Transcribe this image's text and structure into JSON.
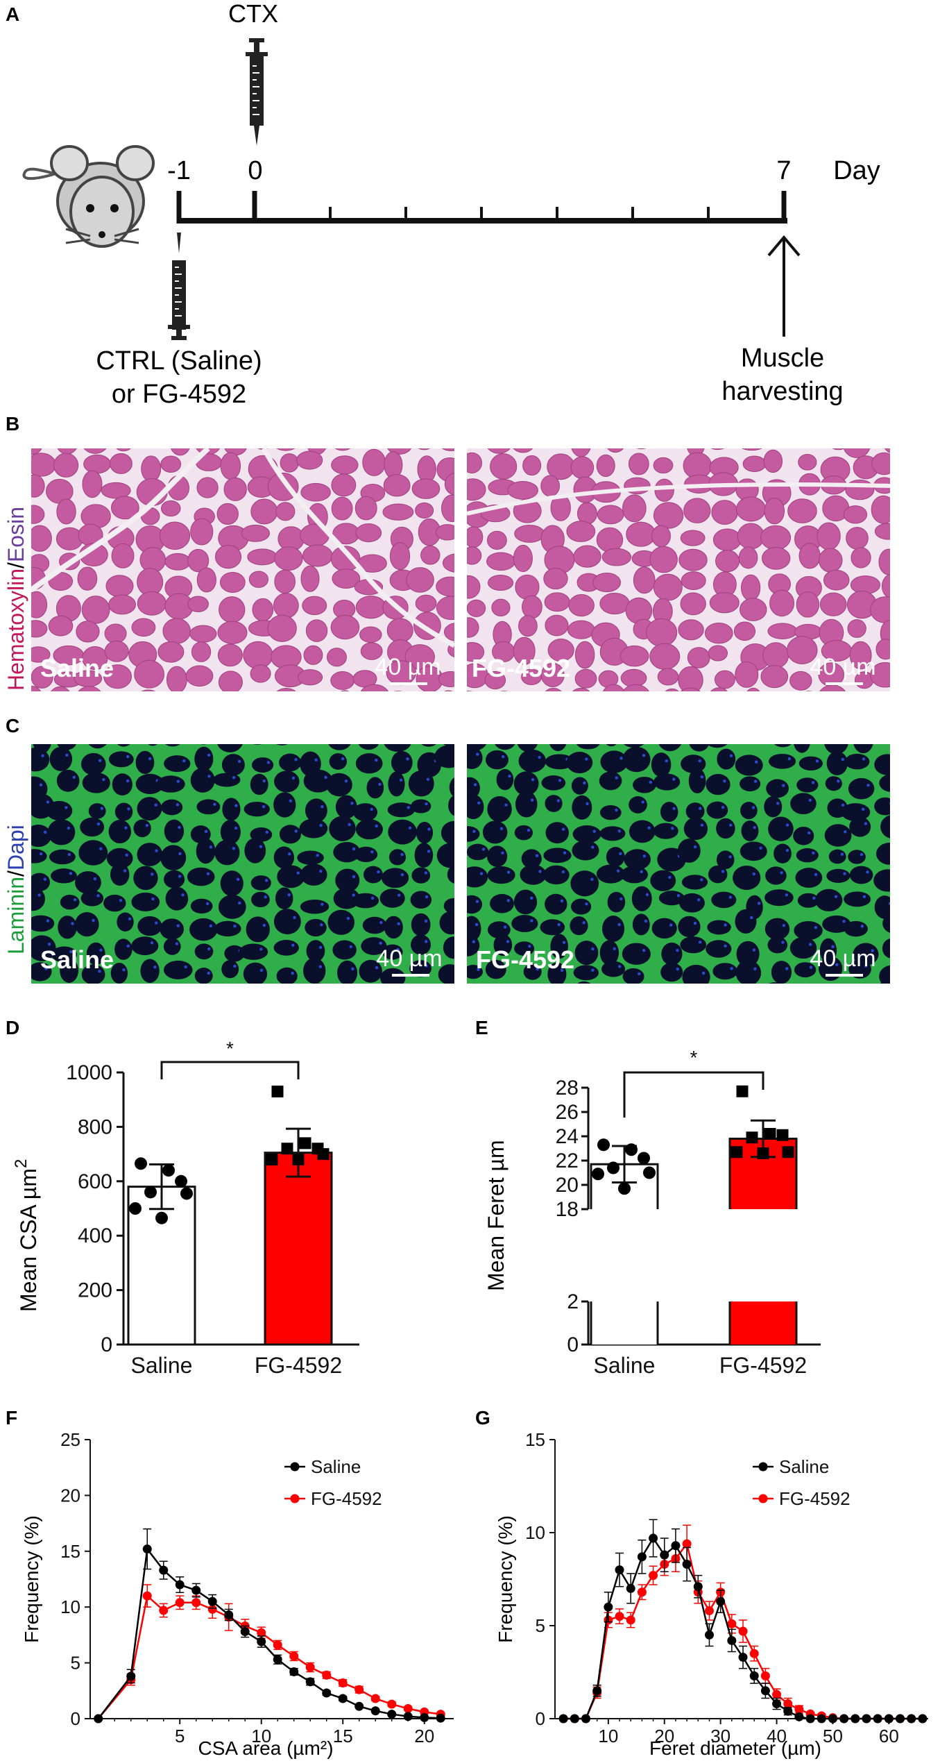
{
  "panel_letters": {
    "a": "A",
    "b": "B",
    "c": "C",
    "d": "D",
    "e": "E",
    "f": "F",
    "g": "G"
  },
  "timeline": {
    "injection_top": "CTX",
    "days": [
      "-1",
      "0",
      "7"
    ],
    "unit": "Day",
    "injection_bottom_line1": "CTRL (Saline)",
    "injection_bottom_line2": "or FG-4592",
    "harvest_line1": "Muscle",
    "harvest_line2": "harvesting",
    "tick_count": 9
  },
  "he_panel": {
    "stain_part1": "Hematoxylin",
    "stain_sep": "/",
    "stain_part2": "Eosin",
    "left_label": "Saline",
    "right_label": "FG-4592",
    "scale": "40 µm",
    "colors": {
      "tissue": "#c45aa0",
      "stroma": "#f1e4ee",
      "hematoxylin": "#c2185b",
      "eosin": "#6a3d9a"
    }
  },
  "if_panel": {
    "stain_part1": "Laminin",
    "stain_sep": "/",
    "stain_part2": "Dapi",
    "left_label": "Saline",
    "right_label": "FG-4592",
    "scale": "40 µm",
    "colors": {
      "membrane": "#2fae4a",
      "fiber": "#0a0f2c",
      "nuclei": "#2a4cd0",
      "laminin": "#1b9e3a",
      "dapi": "#2b3fae"
    }
  },
  "colors": {
    "saline": "#000000",
    "fg4592": "#ff0000",
    "bar_saline": "#ffffff",
    "bar_fg": "#ff0000"
  },
  "chart_data": [
    {
      "id": "D",
      "type": "bar",
      "categories": [
        "Saline",
        "FG-4592"
      ],
      "values": [
        580,
        705
      ],
      "errors": [
        82,
        88
      ],
      "points": [
        [
          665,
          640,
          600,
          560,
          555,
          500,
          465
        ],
        [
          930,
          740,
          720,
          720,
          700,
          680,
          680
        ]
      ],
      "ylabel": "Mean CSA µm",
      "ylabel_sup": "2",
      "ylim": [
        0,
        1000
      ],
      "yticks": [
        "0",
        "200",
        "400",
        "600",
        "800",
        "1000"
      ],
      "significance": "*"
    },
    {
      "id": "E",
      "type": "bar",
      "categories": [
        "Saline",
        "FG-4592"
      ],
      "values": [
        21.7,
        23.8
      ],
      "errors": [
        1.5,
        1.5
      ],
      "points": [
        [
          23.3,
          22.9,
          22.2,
          21.4,
          21.0,
          20.9,
          19.7
        ],
        [
          27.7,
          24.2,
          24.1,
          23.9,
          22.7,
          22.7,
          22.6
        ]
      ],
      "ylabel": "Mean Feret µm",
      "axis_break": [
        2,
        18
      ],
      "ylim": [
        0,
        28
      ],
      "yticks_upper": [
        "18",
        "20",
        "22",
        "24",
        "26",
        "28"
      ],
      "yticks_lower": [
        "0",
        "2"
      ],
      "significance": "*"
    },
    {
      "id": "F",
      "type": "line",
      "xlabel": "CSA area (µm²)",
      "ylabel": "Frequency (%)",
      "xlim": [
        -0.5,
        21.8
      ],
      "ylim": [
        0,
        25
      ],
      "xticks": [
        "5",
        "10",
        "15",
        "20"
      ],
      "yticks": [
        "0",
        "5",
        "10",
        "15",
        "20",
        "25"
      ],
      "legend_position": "top-right",
      "series": [
        {
          "name": "Saline",
          "x": [
            0,
            2,
            3,
            4,
            5,
            6,
            7,
            8,
            9,
            10,
            11,
            12,
            13,
            14,
            15,
            16,
            17,
            18,
            19,
            20,
            21
          ],
          "y": [
            0,
            3.8,
            15.2,
            13.3,
            12,
            11.5,
            10.5,
            9.3,
            7.8,
            6.9,
            5.3,
            4.2,
            3.3,
            2.3,
            1.8,
            1.1,
            0.7,
            0.4,
            0.2,
            0.1,
            0.05
          ],
          "err": [
            0,
            0.6,
            1.8,
            0.8,
            0.7,
            0.6,
            0.6,
            0.5,
            0.5,
            0.5,
            0.4,
            0.3,
            0.3,
            0.2,
            0.2,
            0.1,
            0.1,
            0.05,
            0.05,
            0.03,
            0.02
          ]
        },
        {
          "name": "FG-4592",
          "x": [
            0,
            2,
            3,
            4,
            5,
            6,
            7,
            8,
            9,
            10,
            11,
            12,
            13,
            14,
            15,
            16,
            17,
            18,
            19,
            20,
            21
          ],
          "y": [
            0,
            3.5,
            11,
            9.7,
            10.4,
            10.4,
            9.8,
            9.1,
            8.3,
            7.7,
            6.6,
            5.6,
            4.6,
            3.9,
            3.2,
            2.6,
            1.8,
            1.3,
            0.9,
            0.6,
            0.4
          ],
          "err": [
            0,
            0.5,
            1.0,
            0.6,
            0.6,
            0.6,
            0.8,
            1.2,
            0.6,
            0.5,
            0.4,
            0.4,
            0.4,
            0.3,
            0.3,
            0.3,
            0.2,
            0.2,
            0.1,
            0.1,
            0.1
          ]
        }
      ]
    },
    {
      "id": "G",
      "type": "line",
      "xlabel": "Feret diameter (µm)",
      "ylabel": "Frequency (%)",
      "xlim": [
        0.5,
        67
      ],
      "ylim": [
        0,
        15
      ],
      "xticks": [
        "10",
        "20",
        "30",
        "40",
        "50",
        "60"
      ],
      "yticks": [
        "0",
        "5",
        "10",
        "15"
      ],
      "legend_position": "top-right",
      "series": [
        {
          "name": "Saline",
          "x": [
            2,
            4,
            6,
            8,
            10,
            12,
            14,
            16,
            18,
            20,
            22,
            24,
            26,
            28,
            30,
            32,
            34,
            36,
            38,
            40,
            42,
            44,
            46,
            48,
            50,
            52,
            54,
            56,
            58,
            60,
            62,
            64,
            66
          ],
          "y": [
            0,
            0,
            0,
            1.5,
            6,
            8,
            7,
            8.7,
            9.7,
            8.8,
            9.3,
            8.3,
            7.1,
            4.5,
            6.3,
            4.2,
            3.3,
            2.3,
            1.5,
            0.8,
            0.4,
            0.1,
            0,
            0,
            0,
            0,
            0,
            0,
            0,
            0,
            0,
            0,
            0
          ],
          "err": [
            0,
            0,
            0,
            0.3,
            0.8,
            0.9,
            0.8,
            0.9,
            1.0,
            0.9,
            0.9,
            0.9,
            0.6,
            0.6,
            0.6,
            0.6,
            0.6,
            0.4,
            0.4,
            0.3,
            0.2,
            0.1,
            0,
            0,
            0,
            0,
            0,
            0,
            0,
            0,
            0,
            0,
            0
          ]
        },
        {
          "name": "FG-4592",
          "x": [
            2,
            4,
            6,
            8,
            10,
            12,
            14,
            16,
            18,
            20,
            22,
            24,
            26,
            28,
            30,
            32,
            34,
            36,
            38,
            40,
            42,
            44,
            46,
            48,
            50,
            52,
            54,
            56,
            58,
            60,
            62,
            64,
            66
          ],
          "y": [
            0,
            0,
            0,
            1.4,
            5.3,
            5.5,
            5.3,
            6.8,
            7.7,
            8.3,
            8.6,
            9.4,
            6.8,
            5.8,
            6.8,
            5.1,
            4.7,
            3.5,
            2.3,
            1.3,
            0.8,
            0.5,
            0.25,
            0.15,
            0.05,
            0,
            0,
            0,
            0,
            0,
            0,
            0,
            0
          ],
          "err": [
            0,
            0,
            0,
            0.3,
            0.4,
            0.4,
            0.4,
            0.4,
            0.5,
            0.6,
            0.7,
            1.0,
            0.6,
            0.5,
            0.5,
            0.5,
            0.6,
            0.4,
            0.4,
            0.3,
            0.3,
            0.2,
            0.1,
            0.1,
            0.05,
            0,
            0,
            0,
            0,
            0,
            0,
            0,
            0
          ]
        }
      ]
    }
  ]
}
